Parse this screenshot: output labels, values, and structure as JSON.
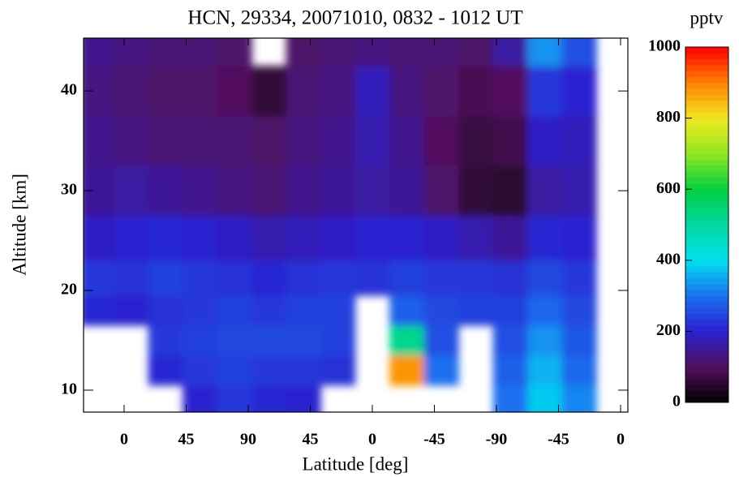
{
  "chart_data": {
    "type": "contour",
    "title": "HCN, 29334,  20071010,  0832 - 1012 UT",
    "xlabel": "Latitude [deg]",
    "ylabel": "Altitude [km]",
    "colorbar_label": "pptv",
    "x": [
      -20,
      5,
      30,
      55,
      80,
      105,
      130,
      155,
      180,
      205,
      230,
      255,
      280,
      305,
      330
    ],
    "y": [
      9,
      12,
      15,
      18,
      21,
      25,
      30,
      35,
      40,
      45
    ],
    "values": [
      [
        null,
        null,
        null,
        210,
        230,
        190,
        150,
        140,
        130,
        140
      ],
      [
        null,
        null,
        null,
        200,
        220,
        200,
        160,
        130,
        120,
        130
      ],
      [
        null,
        210,
        230,
        220,
        240,
        210,
        150,
        120,
        110,
        120
      ],
      [
        200,
        230,
        240,
        230,
        230,
        200,
        140,
        120,
        110,
        120
      ],
      [
        230,
        240,
        250,
        240,
        220,
        190,
        130,
        120,
        100,
        110
      ],
      [
        210,
        230,
        250,
        230,
        210,
        170,
        120,
        110,
        60,
        null
      ],
      [
        200,
        230,
        250,
        240,
        220,
        180,
        140,
        130,
        120,
        110
      ],
      [
        null,
        220,
        240,
        240,
        230,
        190,
        150,
        140,
        130,
        120
      ],
      [
        null,
        null,
        null,
        null,
        220,
        200,
        160,
        170,
        180,
        130
      ],
      [
        null,
        880,
        520,
        280,
        240,
        200,
        150,
        140,
        130,
        120
      ],
      [
        null,
        300,
        260,
        250,
        230,
        190,
        110,
        100,
        110,
        120
      ],
      [
        null,
        null,
        null,
        240,
        230,
        170,
        60,
        70,
        90,
        110
      ],
      [
        300,
        280,
        260,
        240,
        220,
        150,
        50,
        80,
        100,
        160
      ],
      [
        380,
        360,
        330,
        290,
        250,
        210,
        160,
        190,
        230,
        330
      ],
      [
        320,
        290,
        270,
        250,
        230,
        200,
        170,
        180,
        200,
        260
      ]
    ],
    "xlim": [
      -29.4,
      365.3
    ],
    "xticks": [
      {
        "value": 0,
        "label": "0"
      },
      {
        "value": 45,
        "label": "45"
      },
      {
        "value": 90,
        "label": "90"
      },
      {
        "value": 135,
        "label": "45"
      },
      {
        "value": 180,
        "label": "0"
      },
      {
        "value": 225,
        "label": "-45"
      },
      {
        "value": 270,
        "label": "-90"
      },
      {
        "value": 315,
        "label": "-45"
      },
      {
        "value": 360,
        "label": "0"
      }
    ],
    "ylim": [
      7.8,
      45.3
    ],
    "yticks": [
      10,
      20,
      30,
      40
    ],
    "clim": [
      0,
      1000
    ],
    "cticks": [
      0,
      200,
      400,
      600,
      800,
      1000
    ],
    "colormap": [
      "#000000",
      "#52105e",
      "#2a20d0",
      "#1a70f0",
      "#00e0f0",
      "#00d8a0",
      "#00d040",
      "#90e820",
      "#f0e820",
      "#ff8000",
      "#ff0000"
    ]
  }
}
